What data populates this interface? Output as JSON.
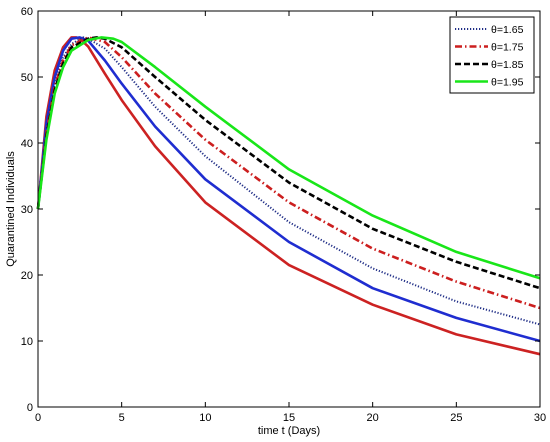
{
  "chart_data": {
    "type": "line",
    "title": "",
    "xlabel": "time t (Days)",
    "ylabel": "Quarantined Individuals",
    "xlim": [
      0,
      30
    ],
    "ylim": [
      0,
      60
    ],
    "xticks": [
      "0",
      "5",
      "10",
      "15",
      "20",
      "25",
      "30"
    ],
    "yticks": [
      "0",
      "10",
      "20",
      "30",
      "40",
      "50",
      "60"
    ],
    "grid": false,
    "legend_position": "top-right",
    "legend": [
      {
        "label": "θ=1.65",
        "color": "#1f2d86",
        "dash": "dotted"
      },
      {
        "label": "θ=1.75",
        "color": "#cc1f1f",
        "dash": "dashdot"
      },
      {
        "label": "θ=1.85",
        "color": "#000000",
        "dash": "dashed"
      },
      {
        "label": "θ=1.95",
        "color": "#19e619",
        "dash": "solid"
      }
    ],
    "series": [
      {
        "color": "#cc2222",
        "dash": "solid",
        "x": [
          0,
          0.5,
          1,
          1.5,
          2,
          2.3,
          2.5,
          3,
          4,
          5,
          7,
          10,
          15,
          20,
          25,
          30
        ],
        "y": [
          30,
          44,
          51,
          54.5,
          56,
          56,
          55.8,
          54.6,
          50.5,
          46.5,
          39.5,
          31,
          21.5,
          15.5,
          11,
          8
        ]
      },
      {
        "color": "#1f2dd0",
        "dash": "solid",
        "x": [
          0,
          0.5,
          1,
          1.5,
          2,
          2.5,
          3,
          4,
          5,
          7,
          10,
          15,
          20,
          25,
          30
        ],
        "y": [
          30,
          43,
          50,
          54,
          55.8,
          56,
          55.5,
          52.5,
          49,
          42.5,
          34.5,
          25,
          18,
          13.5,
          10
        ]
      },
      {
        "color": "#1f2d86",
        "dash": "dotted",
        "x": [
          0,
          0.5,
          1,
          1.5,
          2,
          2.7,
          3,
          4,
          5,
          7,
          10,
          15,
          20,
          25,
          30
        ],
        "y": [
          30,
          42,
          49,
          53,
          55,
          56,
          55.8,
          54.3,
          51.5,
          45.5,
          38,
          28,
          21,
          16,
          12.5
        ]
      },
      {
        "color": "#cc1f1f",
        "dash": "dashdot",
        "x": [
          0,
          0.5,
          1,
          1.5,
          2,
          3,
          4,
          5,
          7,
          10,
          15,
          20,
          25,
          30
        ],
        "y": [
          30,
          41.5,
          48.5,
          52.5,
          54.8,
          56,
          55.3,
          53,
          47.5,
          40.5,
          31,
          24,
          19,
          15
        ]
      },
      {
        "color": "#000000",
        "dash": "dashed",
        "x": [
          0,
          0.5,
          1,
          1.5,
          2,
          3,
          3.5,
          4,
          5,
          7,
          10,
          15,
          20,
          25,
          30
        ],
        "y": [
          30,
          41,
          48,
          52,
          54.5,
          55.8,
          56,
          55.8,
          54.5,
          50,
          43.5,
          34,
          27,
          22,
          18
        ]
      },
      {
        "color": "#19e619",
        "dash": "solid",
        "x": [
          0,
          0.5,
          1,
          1.5,
          2,
          3,
          3.8,
          4.5,
          5,
          7,
          10,
          15,
          20,
          25,
          30
        ],
        "y": [
          30,
          40.5,
          47.5,
          51.5,
          54,
          55.6,
          56,
          55.8,
          55.3,
          51.5,
          45.5,
          36,
          29,
          23.5,
          19.5
        ]
      }
    ]
  }
}
